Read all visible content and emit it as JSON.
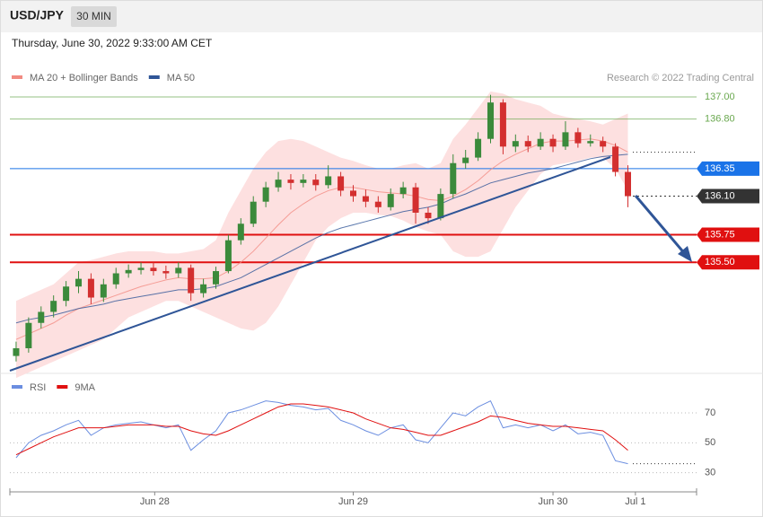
{
  "header": {
    "title": "USD/JPY",
    "timeframe": "30 MIN",
    "date": "Thursday, June 30, 2022 9:33:00 AM CET",
    "credit": "Research © 2022 Trading Central"
  },
  "chart_data": [
    {
      "type": "candlestick",
      "ylim": [
        134.5,
        137.31
      ],
      "xlim": [
        0,
        55
      ],
      "xticks": [
        {
          "value": 11.6,
          "label": "Jun 28"
        },
        {
          "value": 27.5,
          "label": "Jun 29"
        },
        {
          "value": 43.5,
          "label": "Jun 30"
        },
        {
          "value": 50.1,
          "label": "Jul 1"
        }
      ],
      "up_color": "#3b8a3b",
      "down_color": "#d32f2f",
      "ohlc": [
        [
          134.65,
          134.78,
          134.6,
          134.72
        ],
        [
          134.72,
          135.0,
          134.68,
          134.95
        ],
        [
          134.95,
          135.1,
          134.9,
          135.05
        ],
        [
          135.05,
          135.2,
          135.0,
          135.15
        ],
        [
          135.15,
          135.33,
          135.1,
          135.28
        ],
        [
          135.28,
          135.42,
          135.22,
          135.35
        ],
        [
          135.35,
          135.4,
          135.12,
          135.18
        ],
        [
          135.18,
          135.35,
          135.14,
          135.3
        ],
        [
          135.3,
          135.45,
          135.26,
          135.4
        ],
        [
          135.4,
          135.48,
          135.36,
          135.43
        ],
        [
          135.43,
          135.5,
          135.39,
          135.45
        ],
        [
          135.45,
          135.5,
          135.38,
          135.42
        ],
        [
          135.42,
          135.47,
          135.35,
          135.4
        ],
        [
          135.4,
          135.5,
          135.36,
          135.45
        ],
        [
          135.45,
          135.48,
          135.15,
          135.22
        ],
        [
          135.22,
          135.35,
          135.18,
          135.3
        ],
        [
          135.3,
          135.46,
          135.26,
          135.42
        ],
        [
          135.42,
          135.75,
          135.4,
          135.7
        ],
        [
          135.7,
          135.9,
          135.66,
          135.85
        ],
        [
          135.85,
          136.1,
          135.82,
          136.05
        ],
        [
          136.05,
          136.23,
          136.0,
          136.18
        ],
        [
          136.18,
          136.32,
          136.14,
          136.25
        ],
        [
          136.25,
          136.3,
          136.16,
          136.22
        ],
        [
          136.22,
          136.3,
          136.18,
          136.25
        ],
        [
          136.25,
          136.3,
          136.15,
          136.2
        ],
        [
          136.2,
          136.38,
          136.17,
          136.28
        ],
        [
          136.28,
          136.32,
          136.1,
          136.15
        ],
        [
          136.15,
          136.2,
          136.05,
          136.1
        ],
        [
          136.1,
          136.16,
          136.0,
          136.05
        ],
        [
          136.05,
          136.1,
          135.95,
          136.0
        ],
        [
          136.0,
          136.17,
          135.97,
          136.12
        ],
        [
          136.12,
          136.23,
          136.08,
          136.18
        ],
        [
          136.18,
          136.22,
          135.85,
          135.95
        ],
        [
          135.95,
          136.0,
          135.85,
          135.9
        ],
        [
          135.9,
          136.17,
          135.88,
          136.12
        ],
        [
          136.12,
          136.48,
          136.08,
          136.4
        ],
        [
          136.4,
          136.52,
          136.35,
          136.45
        ],
        [
          136.45,
          136.68,
          136.42,
          136.62
        ],
        [
          136.62,
          137.02,
          136.58,
          136.95
        ],
        [
          136.95,
          136.98,
          136.48,
          136.55
        ],
        [
          136.55,
          136.66,
          136.5,
          136.6
        ],
        [
          136.6,
          136.65,
          136.5,
          136.55
        ],
        [
          136.55,
          136.68,
          136.52,
          136.62
        ],
        [
          136.62,
          136.66,
          136.5,
          136.55
        ],
        [
          136.55,
          136.78,
          136.52,
          136.68
        ],
        [
          136.68,
          136.72,
          136.54,
          136.58
        ],
        [
          136.58,
          136.66,
          136.55,
          136.6
        ],
        [
          136.6,
          136.64,
          136.5,
          136.55
        ],
        [
          136.55,
          136.58,
          136.28,
          136.32
        ],
        [
          136.32,
          136.38,
          136.0,
          136.1
        ]
      ],
      "series": [
        {
          "name": "MA 20 + Bollinger Bands",
          "color": "#f28b82",
          "band_color": "#fde0e0",
          "values": [
            134.8,
            134.85,
            134.9,
            134.95,
            135.02,
            135.08,
            135.12,
            135.16,
            135.2,
            135.24,
            135.28,
            135.31,
            135.34,
            135.36,
            135.35,
            135.35,
            135.36,
            135.42,
            135.5,
            135.6,
            135.72,
            135.84,
            135.95,
            136.03,
            136.1,
            136.15,
            136.18,
            136.18,
            136.16,
            136.14,
            136.13,
            136.12,
            136.1,
            136.07,
            136.06,
            136.1,
            136.16,
            136.24,
            136.34,
            136.42,
            136.48,
            136.53,
            136.58,
            136.6,
            136.6,
            136.61,
            136.62,
            136.6,
            136.56,
            136.5
          ],
          "upper": [
            135.15,
            135.2,
            135.25,
            135.3,
            135.4,
            135.5,
            135.52,
            135.55,
            135.58,
            135.6,
            135.6,
            135.6,
            135.58,
            135.58,
            135.6,
            135.62,
            135.7,
            135.95,
            136.15,
            136.35,
            136.5,
            136.6,
            136.62,
            136.6,
            136.55,
            136.5,
            136.45,
            136.42,
            136.38,
            136.35,
            136.35,
            136.38,
            136.4,
            136.35,
            136.4,
            136.62,
            136.75,
            136.9,
            137.05,
            137.03,
            136.98,
            136.95,
            136.92,
            136.85,
            136.82,
            136.8,
            136.78,
            136.75,
            136.8,
            136.85
          ],
          "lower": [
            134.45,
            134.5,
            134.55,
            134.6,
            134.65,
            134.7,
            134.75,
            134.8,
            134.9,
            135.0,
            135.05,
            135.1,
            135.15,
            135.15,
            135.1,
            135.05,
            135.0,
            134.95,
            134.9,
            134.88,
            134.95,
            135.1,
            135.3,
            135.5,
            135.7,
            135.82,
            135.9,
            135.95,
            135.95,
            135.93,
            135.92,
            135.88,
            135.82,
            135.78,
            135.75,
            135.6,
            135.55,
            135.55,
            135.6,
            135.8,
            136.0,
            136.15,
            136.3,
            136.38,
            136.4,
            136.42,
            136.45,
            136.45,
            136.35,
            136.15
          ]
        },
        {
          "name": "MA 50",
          "color": "#2f5597",
          "values": [
            134.95,
            134.98,
            135.0,
            135.02,
            135.05,
            135.08,
            135.1,
            135.12,
            135.15,
            135.17,
            135.19,
            135.21,
            135.23,
            135.25,
            135.25,
            135.26,
            135.28,
            135.32,
            135.36,
            135.42,
            135.48,
            135.54,
            135.6,
            135.66,
            135.72,
            135.77,
            135.81,
            135.84,
            135.87,
            135.9,
            135.93,
            135.96,
            135.98,
            136.0,
            136.03,
            136.08,
            136.12,
            136.17,
            136.22,
            136.25,
            136.28,
            136.31,
            136.33,
            136.35,
            136.38,
            136.41,
            136.44,
            136.46,
            136.47,
            136.48
          ]
        }
      ],
      "levels": [
        {
          "value": 137.0,
          "label": "137.00",
          "color": "#6aa84f",
          "style": "text"
        },
        {
          "value": 136.8,
          "label": "136.80",
          "color": "#6aa84f",
          "style": "text"
        },
        {
          "value": 136.35,
          "label": "136.35",
          "color": "#1a73e8",
          "style": "box"
        },
        {
          "value": 136.1,
          "label": "136.10",
          "color": "#333333",
          "style": "box"
        },
        {
          "value": 135.75,
          "label": "135.75",
          "color": "#e01010",
          "style": "box"
        },
        {
          "value": 135.5,
          "label": "135.50",
          "color": "#e01010",
          "style": "box"
        }
      ]
    },
    {
      "type": "line",
      "ylim": [
        19,
        82
      ],
      "yticks": [
        30,
        50,
        70
      ],
      "series": [
        {
          "name": "RSI",
          "color": "#6b8ee0",
          "values": [
            40,
            50,
            55,
            58,
            62,
            65,
            55,
            60,
            62,
            63,
            64,
            62,
            60,
            62,
            45,
            52,
            58,
            70,
            72,
            75,
            78,
            77,
            75,
            74,
            72,
            73,
            65,
            62,
            58,
            55,
            60,
            62,
            52,
            50,
            60,
            70,
            68,
            74,
            78,
            60,
            62,
            60,
            62,
            58,
            62,
            56,
            57,
            55,
            38,
            36
          ]
        },
        {
          "name": "9MA",
          "color": "#e01010",
          "values": [
            42,
            46,
            50,
            54,
            57,
            60,
            60,
            60,
            61,
            62,
            62,
            62,
            61,
            61,
            58,
            56,
            55,
            58,
            62,
            66,
            70,
            74,
            76,
            76,
            75,
            74,
            72,
            70,
            66,
            63,
            60,
            59,
            57,
            55,
            55,
            58,
            61,
            64,
            68,
            67,
            65,
            63,
            62,
            61,
            61,
            60,
            59,
            58,
            52,
            45
          ]
        }
      ]
    }
  ]
}
